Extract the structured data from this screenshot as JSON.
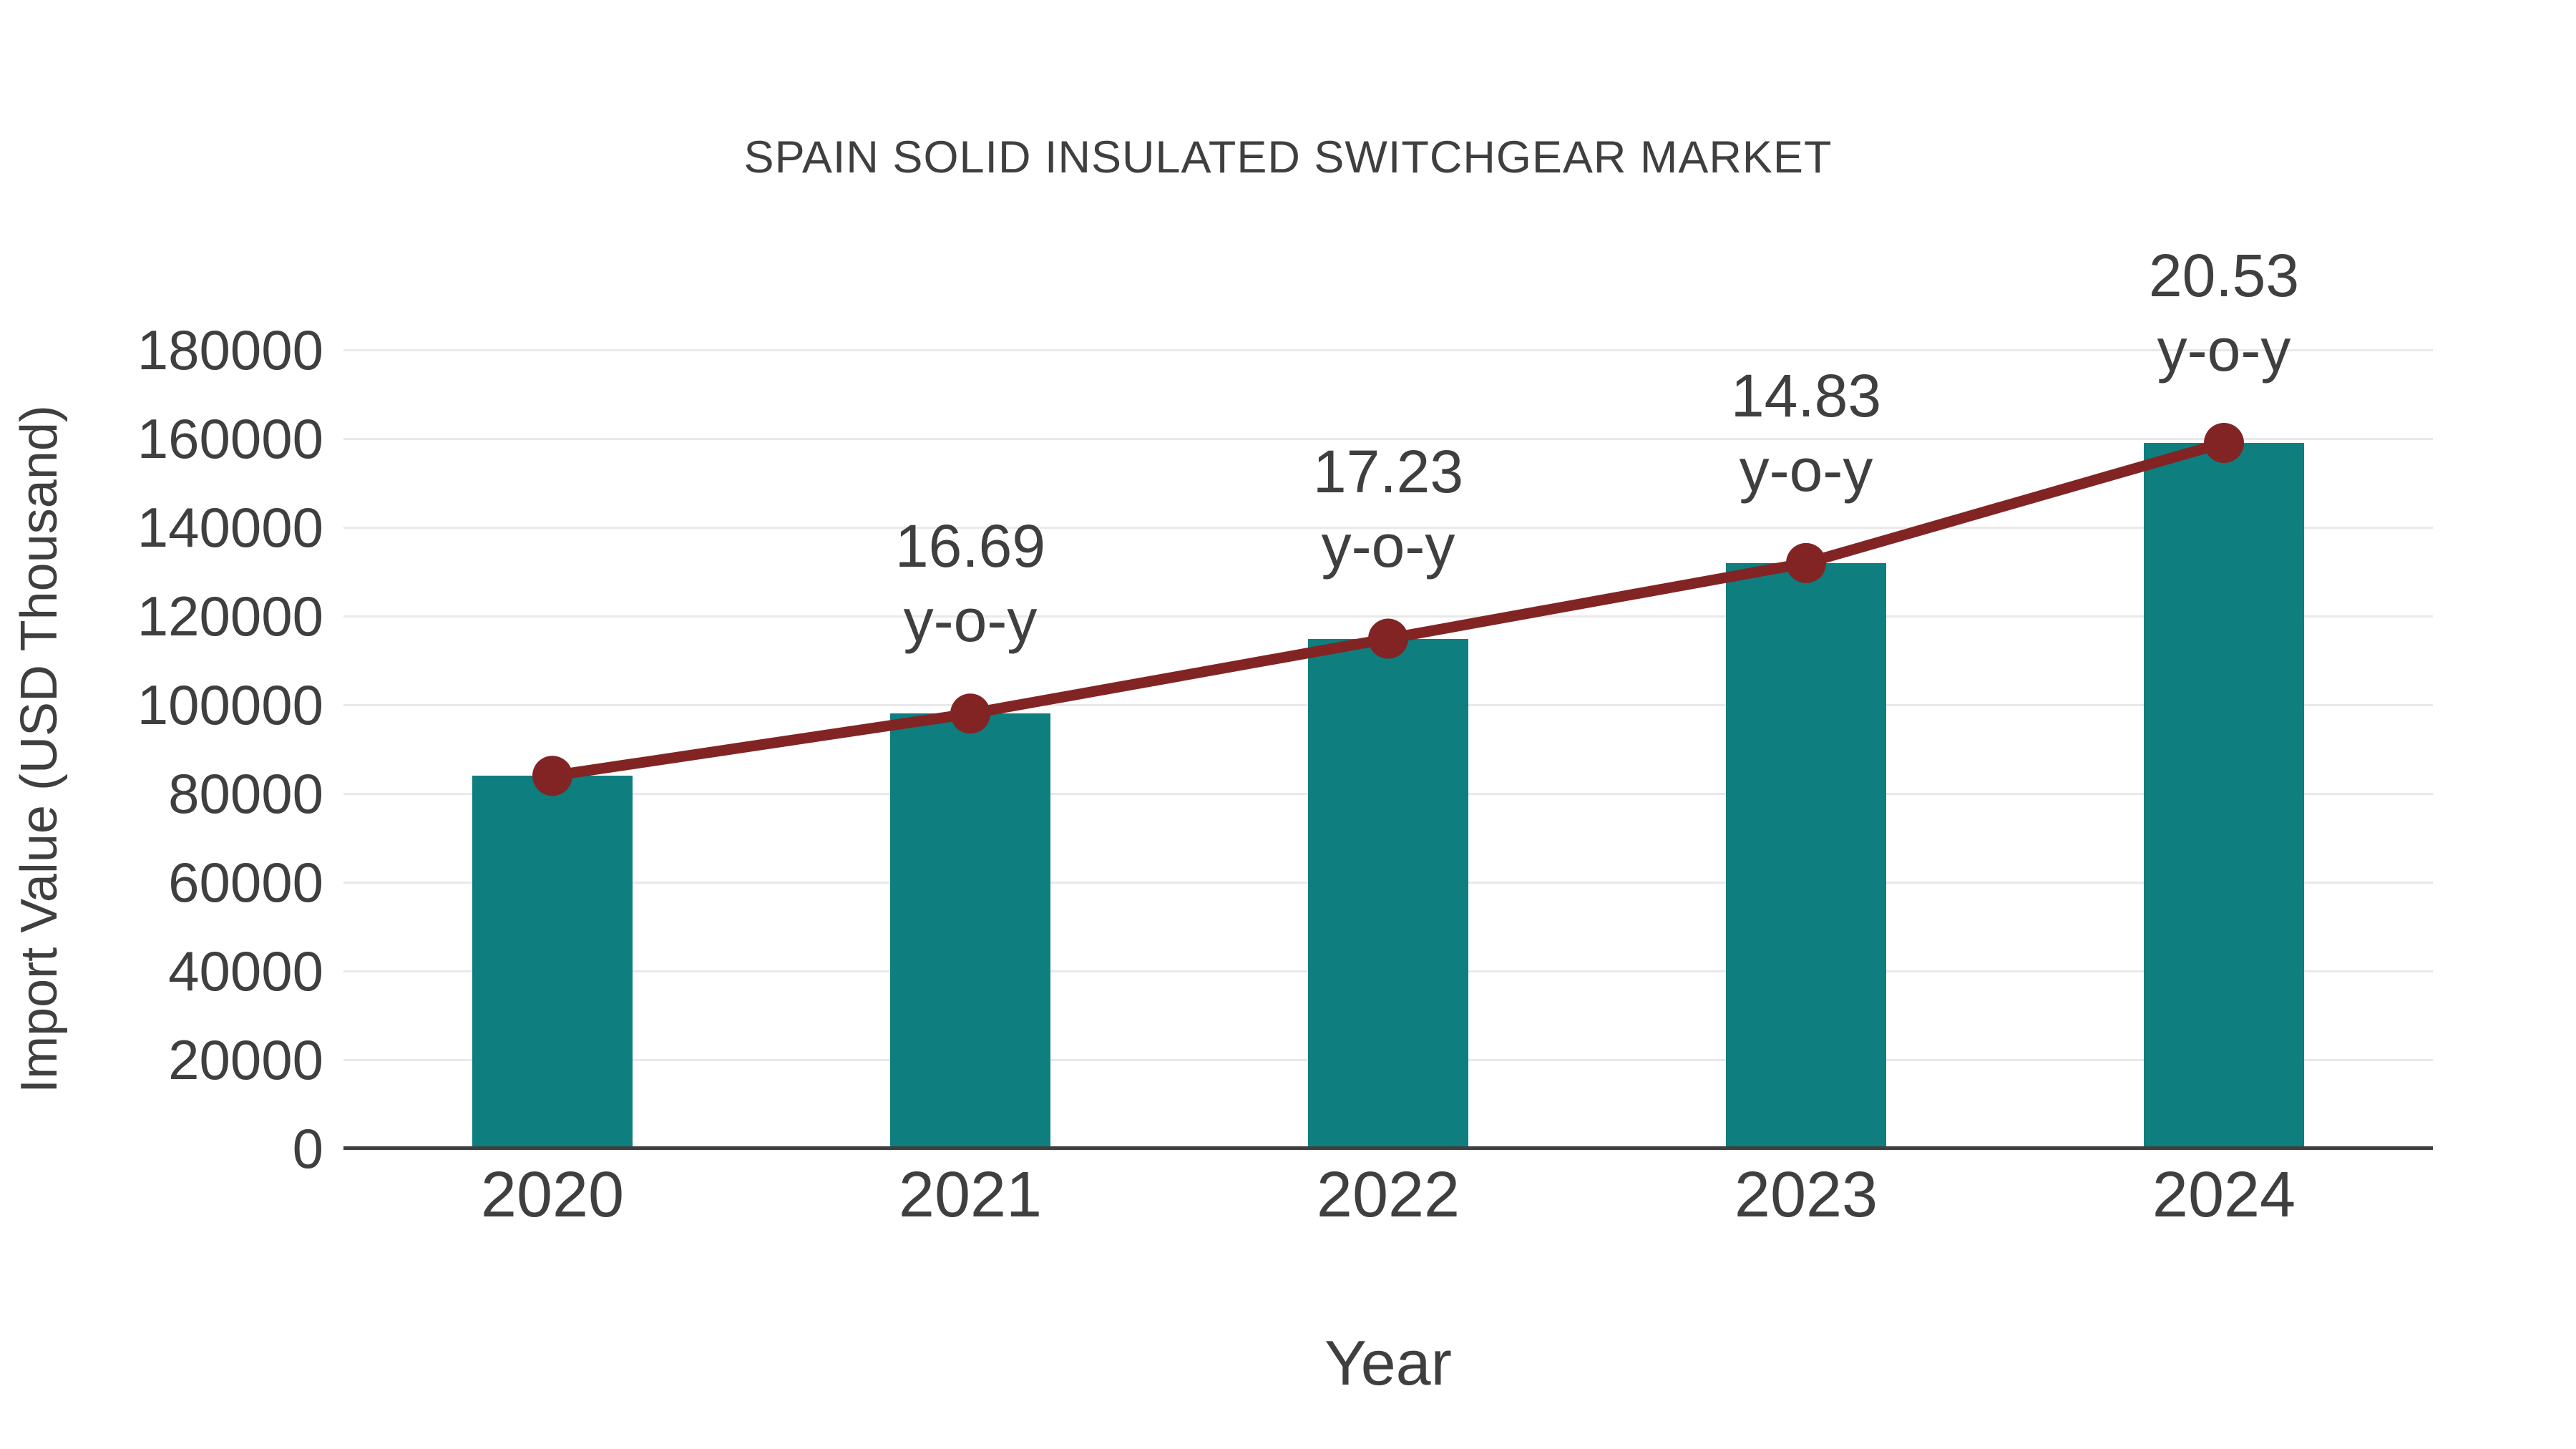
{
  "chart_data": {
    "type": "bar",
    "title": "SPAIN SOLID INSULATED SWITCHGEAR MARKET",
    "xlabel": "Year",
    "ylabel": "Import Value (USD Thousand)",
    "categories": [
      "2020",
      "2021",
      "2022",
      "2023",
      "2024"
    ],
    "series": [
      {
        "name": "Import Value bars",
        "type": "bar",
        "color": "#0e7e7e",
        "values": [
          84000,
          98020,
          114910,
          131950,
          159040
        ]
      },
      {
        "name": "y-o-y growth line",
        "type": "line",
        "color": "#822424",
        "values": [
          84000,
          98020,
          114910,
          131950,
          159040
        ],
        "point_labels": [
          null,
          "16.69",
          "17.23",
          "14.83",
          "20.53"
        ],
        "point_label_suffix": "y-o-y"
      }
    ],
    "ylim": [
      0,
      180000
    ],
    "y_ticks": [
      0,
      20000,
      40000,
      60000,
      80000,
      100000,
      120000,
      140000,
      160000,
      180000
    ],
    "grid": true,
    "legend_position": "none"
  },
  "colors": {
    "background": "#ffffff",
    "bar": "#0e7e7e",
    "line": "#822424",
    "marker": "#822424",
    "text": "#3f3f3f",
    "gridline": "#e9e9e9",
    "axis": "#3f3f3f"
  }
}
